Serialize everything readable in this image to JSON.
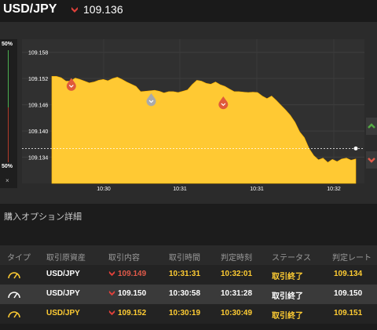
{
  "header": {
    "pair": "USD/JPY",
    "rate": "109.136",
    "direction_icon": "down-arrow-icon"
  },
  "gauge": {
    "top_label": "50%",
    "bottom_label": "50%",
    "close_symbol": "×"
  },
  "chart_data": {
    "type": "area",
    "pair": "USD/JPY",
    "y_ticks": [
      "109.158",
      "109.152",
      "109.146",
      "109.140",
      "109.134"
    ],
    "x_ticks": [
      "10:30",
      "10:31",
      "10:31",
      "10:32"
    ],
    "ylim": [
      109.128,
      109.161
    ],
    "series": [
      {
        "values": [
          109.1525,
          109.1525,
          109.1522,
          109.1514,
          109.1514,
          109.1521,
          109.1518,
          109.1514,
          109.151,
          109.1512,
          109.1516,
          109.1518,
          109.1515,
          109.152,
          109.1523,
          109.1518,
          109.1512,
          109.1507,
          109.1502,
          109.149,
          109.1491,
          109.1492,
          109.1493,
          109.1491,
          109.1487,
          109.149,
          109.149,
          109.1488,
          109.1491,
          109.1494,
          109.1506,
          109.1516,
          109.1514,
          109.1509,
          109.1507,
          109.1512,
          109.1506,
          109.1502,
          109.1496,
          109.149,
          109.149,
          109.1489,
          109.1488,
          109.1489,
          109.1488,
          109.148,
          109.1474,
          109.148,
          109.147,
          109.1459,
          109.1448,
          109.1436,
          109.142,
          109.1398,
          109.1385,
          109.136,
          109.1344,
          109.1334,
          109.1338,
          109.1328,
          109.1335,
          109.133,
          109.1336,
          109.1338,
          109.1333,
          109.1336
        ]
      }
    ],
    "current_rate": 109.136,
    "markers": [
      {
        "type": "down",
        "color": "#e05a3a",
        "x_index": 10,
        "value": 109.1505
      },
      {
        "type": "down",
        "color": "#aaaaaa",
        "x_index": 51,
        "value": 109.147
      },
      {
        "type": "down",
        "color": "#e05a3a",
        "x_index": 88,
        "value": 109.1463
      }
    ]
  },
  "detail": {
    "title": "購入オプション詳細",
    "headers": [
      "タイプ",
      "取引原資産",
      "取引内容",
      "取引時間",
      "判定時刻",
      "ステータス",
      "判定レート"
    ],
    "rows": [
      {
        "pair": "USD/JPY",
        "rate": "109.149",
        "trade_time": "10:31:31",
        "judge_time": "10:32:01",
        "status": "取引終了",
        "judge_rate": "109.134",
        "type_icon": "gauge-icon",
        "highlight": "#ffcc33"
      },
      {
        "pair": "USD/JPY",
        "rate": "109.150",
        "trade_time": "10:30:58",
        "judge_time": "10:31:28",
        "status": "取引終了",
        "judge_rate": "109.150",
        "type_icon": "gauge-icon",
        "highlight": "#ffffff"
      },
      {
        "pair": "USD/JPY",
        "rate": "109.152",
        "trade_time": "10:30:19",
        "judge_time": "10:30:49",
        "status": "取引終了",
        "judge_rate": "109.151",
        "type_icon": "gauge-icon",
        "highlight": "#ffcc33"
      }
    ]
  },
  "colors": {
    "area_fill": "#ffc933",
    "accent_yellow": "#ffcc33",
    "down_red": "#e05a4a",
    "up_green": "#55aa44"
  }
}
